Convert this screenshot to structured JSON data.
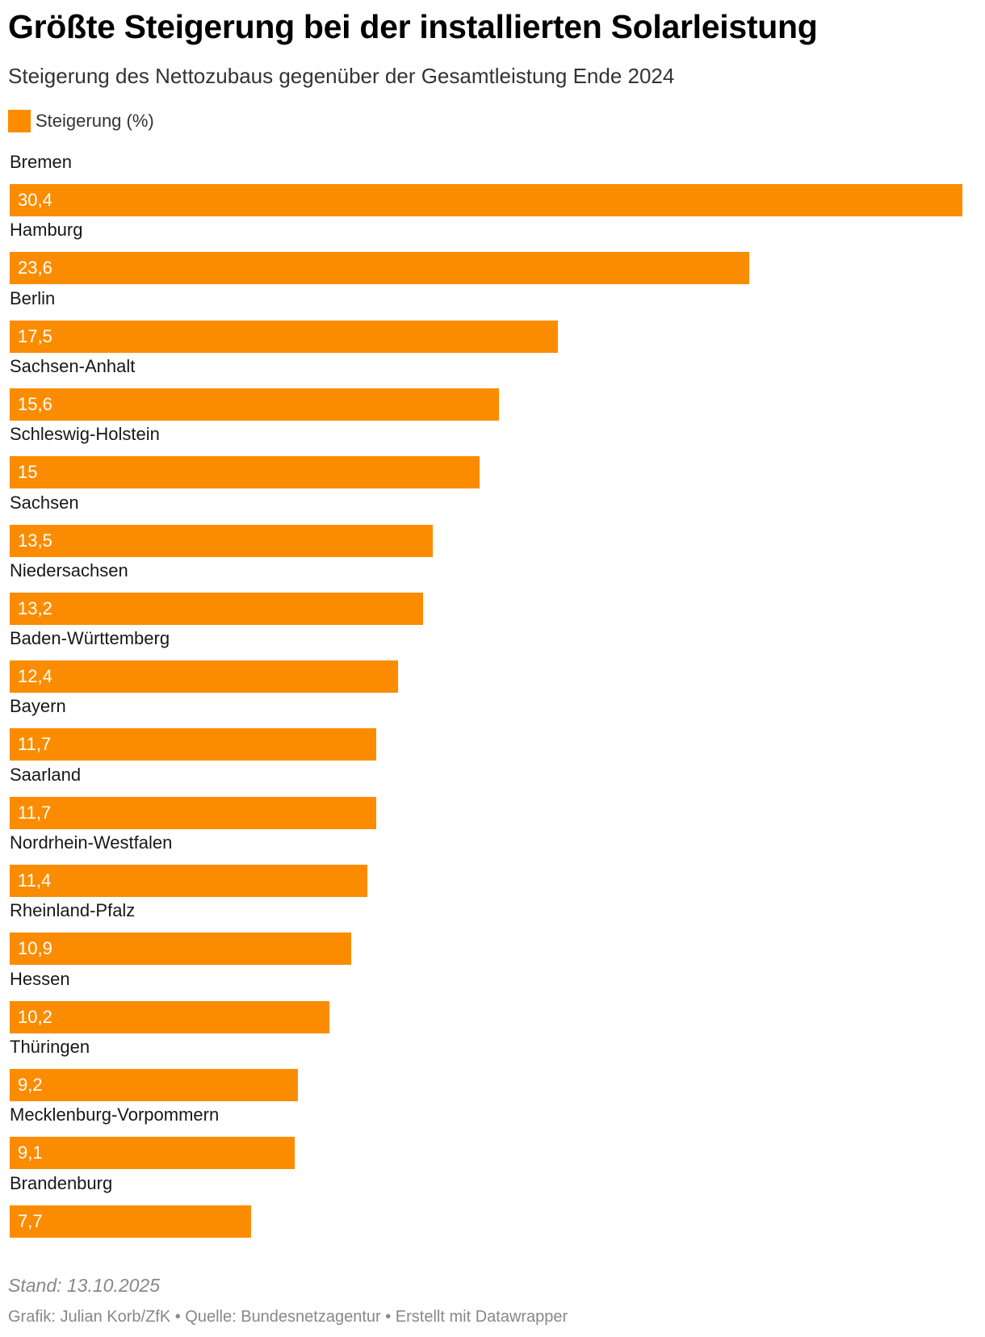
{
  "title": "Größte Steigerung bei der installierten Solarleistung",
  "subtitle": "Steigerung des Nettozubaus gegenüber der Gesamtleistung Ende 2024",
  "colors": {
    "bar": "#fb8c00"
  },
  "chart_data": {
    "type": "bar",
    "orientation": "horizontal",
    "legend": [
      {
        "label": "Steigerung (%)",
        "color": "#fb8c00"
      }
    ],
    "legend_position": "top-left",
    "grid": false,
    "categories": [
      "Bremen",
      "Hamburg",
      "Berlin",
      "Sachsen-Anhalt",
      "Schleswig-Holstein",
      "Sachsen",
      "Niedersachsen",
      "Baden-Württemberg",
      "Bayern",
      "Saarland",
      "Nordrhein-Westfalen",
      "Rheinland-Pfalz",
      "Hessen",
      "Thüringen",
      "Mecklenburg-Vorpommern",
      "Brandenburg"
    ],
    "values": [
      30.4,
      23.6,
      17.5,
      15.6,
      15,
      13.5,
      13.2,
      12.4,
      11.7,
      11.7,
      11.4,
      10.9,
      10.2,
      9.2,
      9.1,
      7.7
    ],
    "value_labels": [
      "30,4",
      "23,6",
      "17,5",
      "15,6",
      "15",
      "13,5",
      "13,2",
      "12,4",
      "11,7",
      "11,7",
      "11,4",
      "10,9",
      "10,2",
      "9,2",
      "9,1",
      "7,7"
    ],
    "xlim": [
      0,
      30.4
    ]
  },
  "notes": "Stand: 13.10.2025",
  "footer": "Grafik: Julian Korb/ZfK • Quelle: Bundesnetzagentur • Erstellt mit Datawrapper"
}
